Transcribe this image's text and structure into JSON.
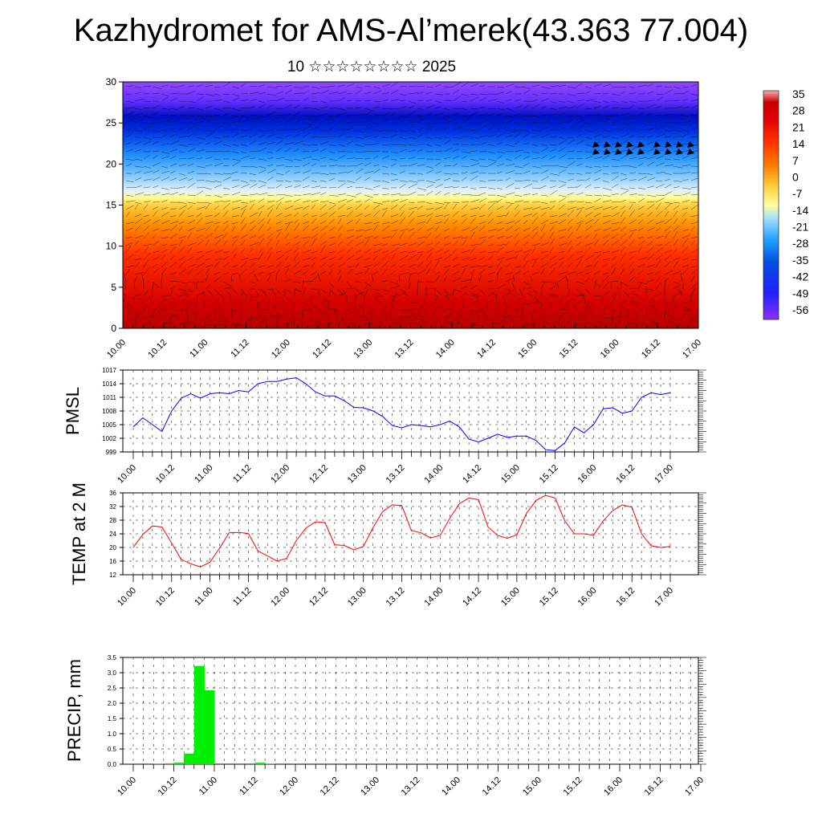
{
  "title": "Kazhydromet for AMS-Al’merek(43.363 77.004)",
  "subtitle": "10 ☆☆☆☆☆☆☆☆ 2025",
  "chart_data": [
    {
      "type": "heatmap",
      "panel": "vertical-section",
      "ylim": [
        0,
        30
      ],
      "yticks": [
        "0",
        "5",
        "10",
        "15",
        "20",
        "25",
        "30"
      ],
      "xticks": [
        "10.00",
        "10.12",
        "11.00",
        "11.12",
        "12.00",
        "12.12",
        "13.00",
        "13.12",
        "14.00",
        "14.12",
        "15.00",
        "15.12",
        "16.00",
        "16.12",
        "17.00"
      ],
      "colorbar_labels": [
        "35",
        "28",
        "21",
        "14",
        "7",
        "0",
        "-7",
        "-14",
        "-21",
        "-28",
        "-35",
        "-42",
        "-49",
        "-56"
      ],
      "colors": {
        "warm": "#c80000",
        "mid": "#ffff80",
        "cold": "#1010e0",
        "top": "#9040ff"
      }
    },
    {
      "type": "line",
      "ylabel": "PMSL",
      "ylim": [
        999,
        1017
      ],
      "yticks": [
        "999",
        "1002",
        "1005",
        "1008",
        "1011",
        "1014",
        "1017"
      ],
      "xticks": [
        "10.00",
        "10.12",
        "11.00",
        "11.12",
        "12.00",
        "12.12",
        "13.00",
        "13.12",
        "14.00",
        "14.12",
        "15.00",
        "15.12",
        "16.00",
        "16.12",
        "17.00"
      ],
      "color": "#0000ff",
      "values": [
        1004.5,
        1006.5,
        1005.0,
        1003.5,
        1008.0,
        1010.8,
        1011.8,
        1010.8,
        1011.8,
        1012.0,
        1011.8,
        1012.5,
        1012.2,
        1014.0,
        1014.5,
        1014.5,
        1015.0,
        1015.3,
        1014.0,
        1012.2,
        1011.3,
        1011.3,
        1010.3,
        1008.8,
        1008.7,
        1008.0,
        1006.8,
        1004.8,
        1004.3,
        1005.0,
        1004.8,
        1004.5,
        1005.0,
        1005.8,
        1004.5,
        1001.8,
        1001.2,
        1002.0,
        1002.9,
        1002.2,
        1002.5,
        1002.5,
        1001.5,
        999.5,
        999.3,
        1001.0,
        1004.5,
        1003.2,
        1005.0,
        1008.5,
        1008.7,
        1007.5,
        1008.0,
        1011.0,
        1012.0,
        1011.6,
        1012.0
      ]
    },
    {
      "type": "line",
      "ylabel": "TEMP at 2 M",
      "ylim": [
        12,
        36
      ],
      "yticks": [
        "12",
        "16",
        "20",
        "24",
        "28",
        "32",
        "36"
      ],
      "xticks": [
        "10.00",
        "10.12",
        "11.00",
        "11.12",
        "12.00",
        "12.12",
        "13.00",
        "13.12",
        "14.00",
        "14.12",
        "15.00",
        "15.12",
        "16.00",
        "16.12",
        "17.00"
      ],
      "color": "#ff0000",
      "values": [
        20.0,
        23.8,
        26.3,
        26.0,
        21.3,
        16.5,
        15.2,
        14.3,
        15.7,
        19.8,
        24.3,
        24.4,
        24.1,
        19.0,
        17.5,
        16.0,
        16.8,
        22.0,
        25.7,
        27.5,
        27.3,
        20.8,
        20.6,
        19.3,
        20.3,
        25.8,
        30.5,
        32.5,
        32.3,
        25.0,
        24.3,
        22.8,
        23.5,
        28.5,
        32.8,
        34.5,
        34.0,
        26.0,
        23.5,
        22.7,
        23.7,
        30.0,
        33.8,
        35.3,
        34.5,
        27.8,
        24.0,
        24.0,
        23.6,
        27.8,
        30.8,
        32.5,
        31.8,
        24.0,
        20.5,
        20.0,
        20.3
      ]
    },
    {
      "type": "bar",
      "ylabel": "PRECIP, mm",
      "ylim": [
        0,
        3.5
      ],
      "yticks": [
        "0.0",
        "0.5",
        "1.0",
        "1.5",
        "2.0",
        "2.5",
        "3.0",
        "3.5"
      ],
      "xticks": [
        "10.00",
        "10.12",
        "11.00",
        "11.12",
        "12.00",
        "12.12",
        "13.00",
        "13.12",
        "14.00",
        "14.12",
        "15.00",
        "15.12",
        "16.00",
        "16.12",
        "17.00"
      ],
      "color": "#00ee00",
      "values": [
        0,
        0,
        0.02,
        0.03,
        0.05,
        0.35,
        3.22,
        2.42,
        0,
        0,
        0,
        0,
        0.05,
        0.02,
        0,
        0,
        0,
        0,
        0,
        0,
        0,
        0,
        0,
        0,
        0,
        0,
        0,
        0,
        0,
        0,
        0,
        0,
        0,
        0,
        0,
        0,
        0,
        0,
        0,
        0,
        0,
        0,
        0,
        0,
        0,
        0,
        0,
        0,
        0,
        0,
        0,
        0,
        0,
        0,
        0,
        0,
        0
      ]
    }
  ]
}
